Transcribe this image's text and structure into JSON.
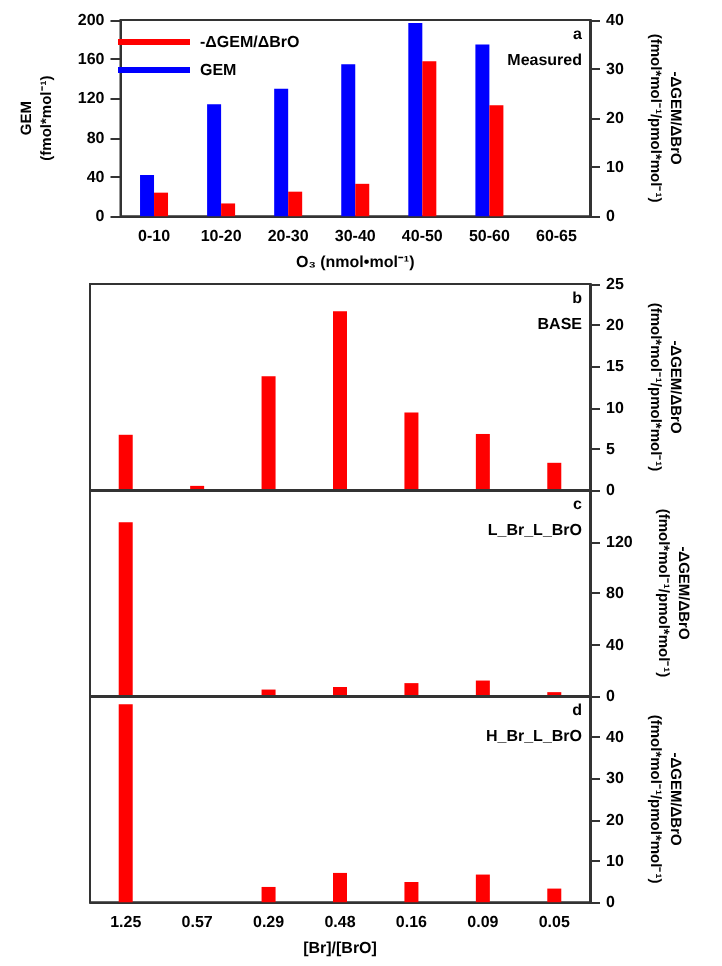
{
  "chart_data": [
    {
      "type": "bar",
      "categories": [
        "0-10",
        "10-20",
        "20-30",
        "30-40",
        "40-50",
        "50-60",
        "60-65"
      ],
      "xlabel": "O₃ (nmol•mol⁻¹)",
      "ylabel": "GEM (fmol*mol⁻¹)",
      "y2label": "-ΔGEM/ΔBrO (fmol*mol⁻¹/pmol*mol⁻¹)",
      "ylim": [
        0,
        200
      ],
      "yticks": [
        0,
        40,
        80,
        120,
        160,
        200
      ],
      "y2lim": [
        0,
        40
      ],
      "y2ticks": [
        0,
        10,
        20,
        30,
        40
      ],
      "legend": "top left",
      "grid": false,
      "annotations": [
        "a",
        "Measured"
      ],
      "series": [
        {
          "name": "GEM",
          "color": "#0000ff",
          "values": [
            42,
            114,
            130,
            155,
            197,
            175,
            null
          ]
        },
        {
          "name": "-ΔGEM/ΔBrO",
          "color": "#ff0000",
          "axis": "y2",
          "values": [
            4.8,
            2.6,
            5,
            6.6,
            31.6,
            22.6,
            null
          ]
        }
      ]
    },
    {
      "type": "bar",
      "categories": [
        "1.25",
        "0.57",
        "0.29",
        "0.48",
        "0.16",
        "0.09",
        "0.05"
      ],
      "ylabel": "-ΔGEM/ΔBrO (fmol*mol⁻¹/pmol*mol⁻¹)",
      "ylim": [
        0,
        25
      ],
      "yticks": [
        0,
        5,
        10,
        15,
        20,
        25
      ],
      "tick_labels": "y",
      "grid": false,
      "annotations": [
        "b",
        "BASE"
      ],
      "color": "#ff0000",
      "values": [
        6.7,
        0.5,
        13.8,
        21.7,
        9.4,
        6.8,
        3.3
      ]
    },
    {
      "type": "bar",
      "categories": [
        "1.25",
        "0.57",
        "0.29",
        "0.48",
        "0.16",
        "0.09",
        "0.05"
      ],
      "ylabel": "-ΔGEM/ΔBrO (fmol*mol⁻¹/pmol*mol⁻¹)",
      "ylim": [
        0,
        160
      ],
      "yticks": [
        0,
        40,
        80,
        120
      ],
      "tick_labels": "y",
      "grid": false,
      "annotations": [
        "c",
        "L_Br_L_BrO"
      ],
      "color": "#ff0000",
      "values": [
        135,
        0,
        5,
        7,
        10,
        12,
        3
      ]
    },
    {
      "type": "bar",
      "categories": [
        "1.25",
        "0.57",
        "0.29",
        "0.48",
        "0.16",
        "0.09",
        "0.05"
      ],
      "xlabel": "[Br]/[BrO]",
      "ylabel": "-ΔGEM/ΔBrO (fmol*mol⁻¹/pmol*mol⁻¹)",
      "ylim": [
        0,
        50
      ],
      "yticks": [
        0,
        10,
        20,
        30,
        40
      ],
      "grid": false,
      "annotations": [
        "d",
        "H_Br_L_BrO"
      ],
      "color": "#ff0000",
      "values": [
        48,
        0,
        3.7,
        7.1,
        4.9,
        6.7,
        3.3
      ]
    }
  ]
}
